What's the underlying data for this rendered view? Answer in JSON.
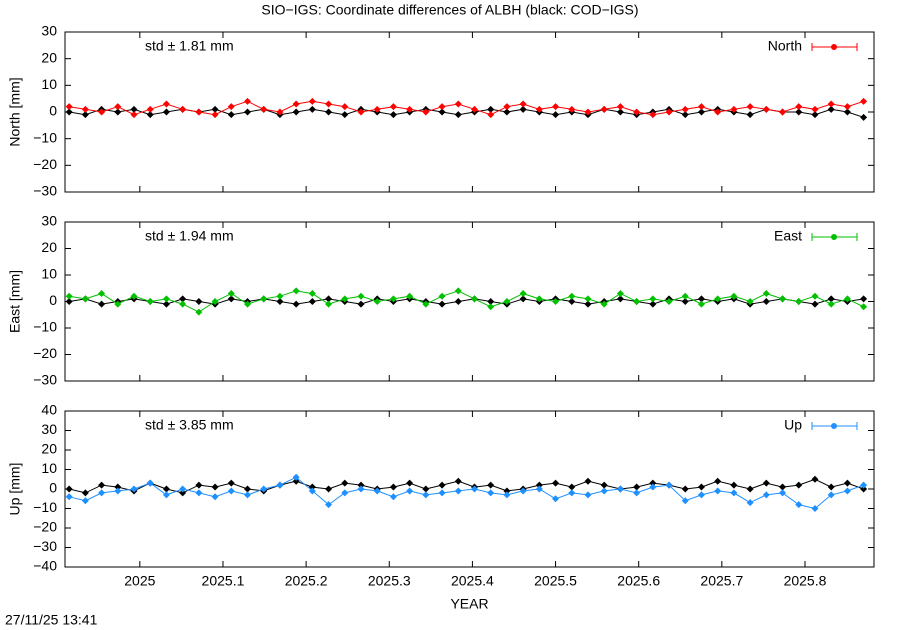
{
  "title": "SIO−IGS: Coordinate differences of ALBH (black: COD−IGS)",
  "timestamp": "27/11/25 13:41",
  "chart_data": [
    {
      "type": "line",
      "ylabel": "North [mm]",
      "annotation": "std ± 1.81 mm",
      "x": [
        2024.915,
        2024.9345,
        2024.954,
        2024.9735,
        2024.993,
        2025.0125,
        2025.032,
        2025.0515,
        2025.071,
        2025.0905,
        2025.11,
        2025.1295,
        2025.149,
        2025.1685,
        2025.188,
        2025.2075,
        2025.227,
        2025.2465,
        2025.266,
        2025.2855,
        2025.305,
        2025.3245,
        2025.344,
        2025.3635,
        2025.383,
        2025.4025,
        2025.422,
        2025.4415,
        2025.461,
        2025.4805,
        2025.5,
        2025.5195,
        2025.539,
        2025.5585,
        2025.578,
        2025.5975,
        2025.617,
        2025.6365,
        2025.656,
        2025.6755,
        2025.695,
        2025.7145,
        2025.734,
        2025.7535,
        2025.773,
        2025.7925,
        2025.812,
        2025.8315,
        2025.851,
        2025.8705
      ],
      "series": [
        {
          "color": "#000000",
          "values": [
            0,
            -1,
            1,
            0,
            1,
            -1,
            0,
            1,
            0,
            1,
            -1,
            0,
            1,
            -1,
            0,
            1,
            0,
            -1,
            1,
            0,
            -1,
            0,
            1,
            0,
            -1,
            0,
            1,
            0,
            1,
            0,
            -1,
            0,
            -1,
            1,
            0,
            -1,
            0,
            1,
            -1,
            0,
            1,
            0,
            -1,
            1,
            0,
            0,
            -1,
            1,
            0,
            -2
          ]
        },
        {
          "name": "North",
          "color": "#ff0000",
          "values": [
            2,
            1,
            0,
            2,
            -1,
            1,
            3,
            1,
            0,
            -1,
            2,
            4,
            1,
            0,
            3,
            4,
            3,
            2,
            0,
            1,
            2,
            1,
            0,
            2,
            3,
            1,
            -1,
            2,
            3,
            1,
            2,
            1,
            0,
            1,
            2,
            0,
            -1,
            0,
            1,
            2,
            0,
            1,
            2,
            1,
            0,
            2,
            1,
            3,
            2,
            4
          ]
        }
      ],
      "xlim": [
        2024.91,
        2025.883
      ],
      "xticks": [
        2025,
        2025.1,
        2025.2,
        2025.3,
        2025.4,
        2025.5,
        2025.6,
        2025.7,
        2025.8
      ],
      "ylim": [
        -30,
        30
      ],
      "yticks": [
        {
          "value": -30,
          "label": "−30"
        },
        {
          "value": -20,
          "label": "−20"
        },
        {
          "value": -10,
          "label": "−10"
        },
        0,
        10,
        20,
        30
      ]
    },
    {
      "type": "line",
      "ylabel": "East [mm]",
      "annotation": "std ± 1.94 mm",
      "x": [
        2024.915,
        2024.9345,
        2024.954,
        2024.9735,
        2024.993,
        2025.0125,
        2025.032,
        2025.0515,
        2025.071,
        2025.0905,
        2025.11,
        2025.1295,
        2025.149,
        2025.1685,
        2025.188,
        2025.2075,
        2025.227,
        2025.2465,
        2025.266,
        2025.2855,
        2025.305,
        2025.3245,
        2025.344,
        2025.3635,
        2025.383,
        2025.4025,
        2025.422,
        2025.4415,
        2025.461,
        2025.4805,
        2025.5,
        2025.5195,
        2025.539,
        2025.5585,
        2025.578,
        2025.5975,
        2025.617,
        2025.6365,
        2025.656,
        2025.6755,
        2025.695,
        2025.7145,
        2025.734,
        2025.7535,
        2025.773,
        2025.7925,
        2025.812,
        2025.8315,
        2025.851,
        2025.8705
      ],
      "series": [
        {
          "color": "#000000",
          "values": [
            0,
            1,
            -1,
            0,
            1,
            0,
            -1,
            1,
            0,
            -1,
            1,
            0,
            1,
            0,
            -1,
            0,
            1,
            0,
            -1,
            1,
            0,
            1,
            0,
            -1,
            0,
            1,
            0,
            -1,
            1,
            0,
            1,
            0,
            -1,
            0,
            1,
            0,
            -1,
            1,
            0,
            1,
            0,
            1,
            -1,
            0,
            1,
            0,
            -1,
            1,
            0,
            1
          ]
        },
        {
          "name": "East",
          "color": "#00c000",
          "values": [
            2,
            1,
            3,
            -1,
            2,
            0,
            1,
            -1,
            -4,
            0,
            3,
            -1,
            1,
            2,
            4,
            3,
            -1,
            1,
            2,
            0,
            1,
            2,
            -1,
            2,
            4,
            1,
            -2,
            0,
            3,
            1,
            0,
            2,
            1,
            -1,
            3,
            0,
            1,
            0,
            2,
            -1,
            1,
            2,
            0,
            3,
            1,
            0,
            2,
            -1,
            1,
            -2
          ]
        }
      ],
      "xlim": [
        2024.91,
        2025.883
      ],
      "xticks": [
        2025,
        2025.1,
        2025.2,
        2025.3,
        2025.4,
        2025.5,
        2025.6,
        2025.7,
        2025.8
      ],
      "ylim": [
        -30,
        30
      ],
      "yticks": [
        {
          "value": -30,
          "label": "−30"
        },
        {
          "value": -20,
          "label": "−20"
        },
        {
          "value": -10,
          "label": "−10"
        },
        0,
        10,
        20,
        30
      ]
    },
    {
      "type": "line",
      "ylabel": "Up [mm]",
      "annotation": "std ± 3.85 mm",
      "xlabel": "YEAR",
      "x": [
        2024.915,
        2024.9345,
        2024.954,
        2024.9735,
        2024.993,
        2025.0125,
        2025.032,
        2025.0515,
        2025.071,
        2025.0905,
        2025.11,
        2025.1295,
        2025.149,
        2025.1685,
        2025.188,
        2025.2075,
        2025.227,
        2025.2465,
        2025.266,
        2025.2855,
        2025.305,
        2025.3245,
        2025.344,
        2025.3635,
        2025.383,
        2025.4025,
        2025.422,
        2025.4415,
        2025.461,
        2025.4805,
        2025.5,
        2025.5195,
        2025.539,
        2025.5585,
        2025.578,
        2025.5975,
        2025.617,
        2025.6365,
        2025.656,
        2025.6755,
        2025.695,
        2025.7145,
        2025.734,
        2025.7535,
        2025.773,
        2025.7925,
        2025.812,
        2025.8315,
        2025.851,
        2025.8705
      ],
      "series": [
        {
          "color": "#000000",
          "values": [
            0,
            -2,
            2,
            1,
            -1,
            3,
            0,
            -2,
            2,
            1,
            3,
            0,
            -1,
            2,
            4,
            1,
            0,
            3,
            2,
            0,
            1,
            3,
            0,
            2,
            4,
            1,
            2,
            -1,
            0,
            2,
            3,
            1,
            4,
            2,
            0,
            1,
            3,
            2,
            0,
            1,
            4,
            2,
            0,
            3,
            1,
            2,
            5,
            1,
            3,
            0
          ]
        },
        {
          "name": "Up",
          "color": "#1e90ff",
          "values": [
            -4,
            -6,
            -2,
            -1,
            0,
            3,
            -3,
            0,
            -2,
            -4,
            -1,
            -3,
            0,
            2,
            6,
            -1,
            -8,
            -2,
            0,
            -1,
            -4,
            -1,
            -3,
            -2,
            -1,
            0,
            -2,
            -3,
            -1,
            0,
            -5,
            -2,
            -3,
            -1,
            0,
            -2,
            1,
            2,
            -6,
            -3,
            -1,
            -2,
            -7,
            -3,
            -2,
            -8,
            -10,
            -3,
            -1,
            2
          ]
        }
      ],
      "xlim": [
        2024.91,
        2025.883
      ],
      "xticks": [
        2025,
        2025.1,
        2025.2,
        2025.3,
        2025.4,
        2025.5,
        2025.6,
        2025.7,
        2025.8
      ],
      "ylim": [
        -40,
        40
      ],
      "yticks": [
        {
          "value": -40,
          "label": "−40"
        },
        {
          "value": -30,
          "label": "−30"
        },
        {
          "value": -20,
          "label": "−20"
        },
        {
          "value": -10,
          "label": "−10"
        },
        0,
        10,
        20,
        30,
        40
      ]
    }
  ]
}
